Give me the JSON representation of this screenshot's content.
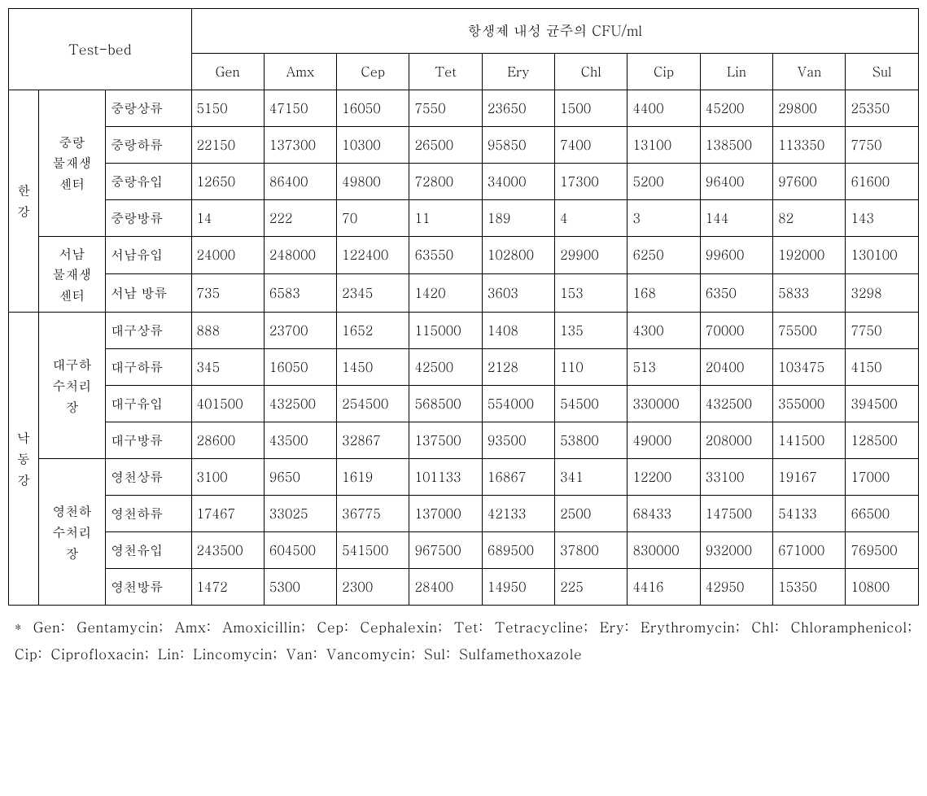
{
  "table": {
    "main_header": "항생제  내성 균주의 CFU/ml",
    "testbed_label": "Test-bed",
    "columns": [
      "Gen",
      "Amx",
      "Cep",
      "Tet",
      "Ery",
      "Chl",
      "Cip",
      "Lin",
      "Van",
      "Sul"
    ],
    "groups": [
      {
        "river": "한\n강",
        "centers": [
          {
            "name": "중랑\n물재생\n센터",
            "rows": [
              {
                "label": "중랑상류",
                "vals": [
                  "5150",
                  "47150",
                  "16050",
                  "7550",
                  "23650",
                  "1500",
                  "4400",
                  "45200",
                  "29800",
                  "25350"
                ]
              },
              {
                "label": "중랑하류",
                "vals": [
                  "22150",
                  "137300",
                  "10300",
                  "26500",
                  "95850",
                  "7400",
                  "13100",
                  "138500",
                  "113350",
                  "7750"
                ]
              },
              {
                "label": "중랑유입",
                "vals": [
                  "12650",
                  "86400",
                  "49800",
                  "72800",
                  "34000",
                  "17300",
                  "5200",
                  "96400",
                  "97600",
                  "61600"
                ]
              },
              {
                "label": "중랑방류",
                "vals": [
                  "14",
                  "222",
                  "70",
                  "11",
                  "189",
                  "4",
                  "3",
                  "144",
                  "82",
                  "143"
                ]
              }
            ]
          },
          {
            "name": "서남\n물재생\n센터",
            "rows": [
              {
                "label": "서남유입",
                "vals": [
                  "24000",
                  "248000",
                  "122400",
                  "63550",
                  "102800",
                  "29900",
                  "6250",
                  "99600",
                  "192000",
                  "130100"
                ]
              },
              {
                "label": "서남 방류",
                "vals": [
                  "735",
                  "6583",
                  "2345",
                  "1420",
                  "3603",
                  "153",
                  "168",
                  "6350",
                  "5833",
                  "3298"
                ]
              }
            ]
          }
        ]
      },
      {
        "river": "낙\n동\n강",
        "centers": [
          {
            "name": "대구하\n수처리\n장",
            "rows": [
              {
                "label": "대구상류",
                "vals": [
                  "888",
                  "23700",
                  "1652",
                  "115000",
                  "1408",
                  "135",
                  "4300",
                  "70000",
                  "75500",
                  "7750"
                ]
              },
              {
                "label": "대구하류",
                "vals": [
                  "345",
                  "16050",
                  "1450",
                  "42500",
                  "2128",
                  "110",
                  "513",
                  "20400",
                  "103475",
                  "4150"
                ]
              },
              {
                "label": "대구유입",
                "vals": [
                  "401500",
                  "432500",
                  "254500",
                  "568500",
                  "554000",
                  "54500",
                  "330000",
                  "432500",
                  "355000",
                  "394500"
                ]
              },
              {
                "label": "대구방류",
                "vals": [
                  "28600",
                  "43500",
                  "32867",
                  "137500",
                  "93500",
                  "53800",
                  "49000",
                  "208000",
                  "141500",
                  "128500"
                ]
              }
            ]
          },
          {
            "name": "영천하\n수처리\n장",
            "rows": [
              {
                "label": "영천상류",
                "vals": [
                  "3100",
                  "9650",
                  "1619",
                  "101133",
                  "16867",
                  "341",
                  "12200",
                  "33100",
                  "19167",
                  "17000"
                ]
              },
              {
                "label": "영천하류",
                "vals": [
                  "17467",
                  "33025",
                  "36775",
                  "137000",
                  "42133",
                  "2500",
                  "68433",
                  "147500",
                  "54133",
                  "66500"
                ]
              },
              {
                "label": "영천유입",
                "vals": [
                  "243500",
                  "604500",
                  "541500",
                  "967500",
                  "689500",
                  "37800",
                  "830000",
                  "932000",
                  "671000",
                  "769500"
                ]
              },
              {
                "label": "영천방류",
                "vals": [
                  "1472",
                  "5300",
                  "2300",
                  "28400",
                  "14950",
                  "225",
                  "4416",
                  "42950",
                  "15350",
                  "10800"
                ]
              }
            ]
          }
        ]
      }
    ]
  },
  "footnote": "* Gen: Gentamycin; Amx: Amoxicillin; Cep: Cephalexin; Tet: Tetracycline; Ery: Erythromycin; Chl: Chloramphenicol; Cip: Ciprofloxacin; Lin: Lincomycin; Van: Vancomycin; Sul: Sulfamethoxazole"
}
